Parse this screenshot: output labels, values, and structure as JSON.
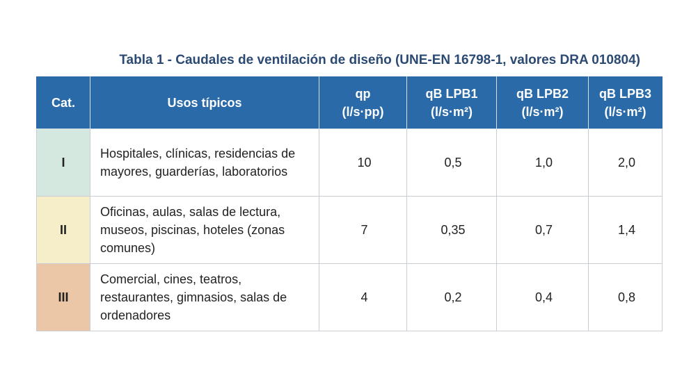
{
  "caption": "Tabla 1 - Caudales de ventilación de diseño (UNE-EN 16798-1, valores DRA 010804)",
  "headers": {
    "cat": "Cat.",
    "uses": "Usos típicos",
    "qp_line1": "qp",
    "qp_line2": "(l/s·pp)",
    "lpb1_line1": "qB LPB1",
    "lpb1_line2": "(l/s·m²)",
    "lpb2_line1": "qB LPB2",
    "lpb2_line2": "(l/s·m²)",
    "lpb3_line1": "qB LPB3",
    "lpb3_line2": "(l/s·m²)"
  },
  "rows": [
    {
      "cat": "I",
      "uses": "Hospitales, clínicas, residencias de mayores, guarderías, laboratorios",
      "qp": "10",
      "lpb1": "0,5",
      "lpb2": "1,0",
      "lpb3": "2,0",
      "color": "#d5e8df"
    },
    {
      "cat": "II",
      "uses": "Oficinas, aulas, salas de lectura, museos, piscinas, hoteles (zonas comunes)",
      "qp": "7",
      "lpb1": "0,35",
      "lpb2": "0,7",
      "lpb3": "1,4",
      "color": "#f6edc9"
    },
    {
      "cat": "III",
      "uses": "Comercial, cines, teatros, restaurantes, gimnasios, salas de ordenadores",
      "qp": "4",
      "lpb1": "0,2",
      "lpb2": "0,4",
      "lpb3": "0,8",
      "color": "#ebc6a7"
    }
  ],
  "colors": {
    "header_bg": "#2a6aa8",
    "caption": "#2b4a73"
  }
}
